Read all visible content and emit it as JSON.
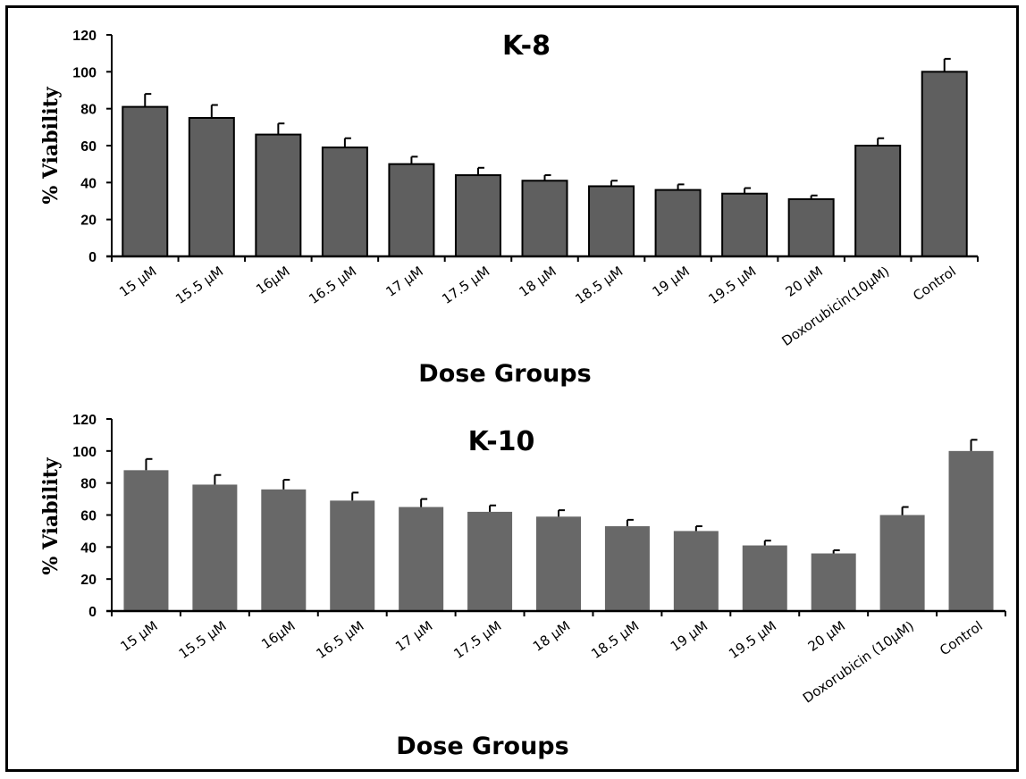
{
  "chart_data": [
    {
      "type": "bar",
      "title": "K-8",
      "xlabel": "Dose Groups",
      "ylabel": "% Viability",
      "ylim": [
        0,
        120
      ],
      "yticks": [
        0,
        20,
        40,
        60,
        80,
        100,
        120
      ],
      "categories": [
        "15 µM",
        "15.5 µM",
        "16µM",
        "16.5 µM",
        "17 µM",
        "17.5 µM",
        "18 µM",
        "18.5 µM",
        "19 µM",
        "19.5 µM",
        "20 µM",
        "Doxorubicin(10µM)",
        "Control"
      ],
      "values": [
        81,
        75,
        66,
        59,
        50,
        44,
        41,
        38,
        36,
        34,
        31,
        60,
        100
      ],
      "errors": [
        7,
        7,
        6,
        5,
        4,
        4,
        3,
        3,
        3,
        3,
        2,
        4,
        7
      ],
      "bar_color": "#5f5f5f",
      "bar_outline": true,
      "grid": false
    },
    {
      "type": "bar",
      "title": "K-10",
      "xlabel": "Dose Groups",
      "ylabel": "% Viability",
      "ylim": [
        0,
        120
      ],
      "yticks": [
        0,
        20,
        40,
        60,
        80,
        100,
        120
      ],
      "categories": [
        "15 µM",
        "15.5 µM",
        "16µM",
        "16.5 µM",
        "17 µM",
        "17.5 µM",
        "18 µM",
        "18.5 µM",
        "19 µM",
        "19.5 µM",
        "20 µM",
        "Doxorubicin (10µM)",
        "Control"
      ],
      "values": [
        88,
        79,
        76,
        69,
        65,
        62,
        59,
        53,
        50,
        41,
        36,
        60,
        100
      ],
      "errors": [
        7,
        6,
        6,
        5,
        5,
        4,
        4,
        4,
        3,
        3,
        2,
        5,
        7
      ],
      "bar_color": "#686868",
      "bar_outline": false,
      "grid": false
    }
  ]
}
